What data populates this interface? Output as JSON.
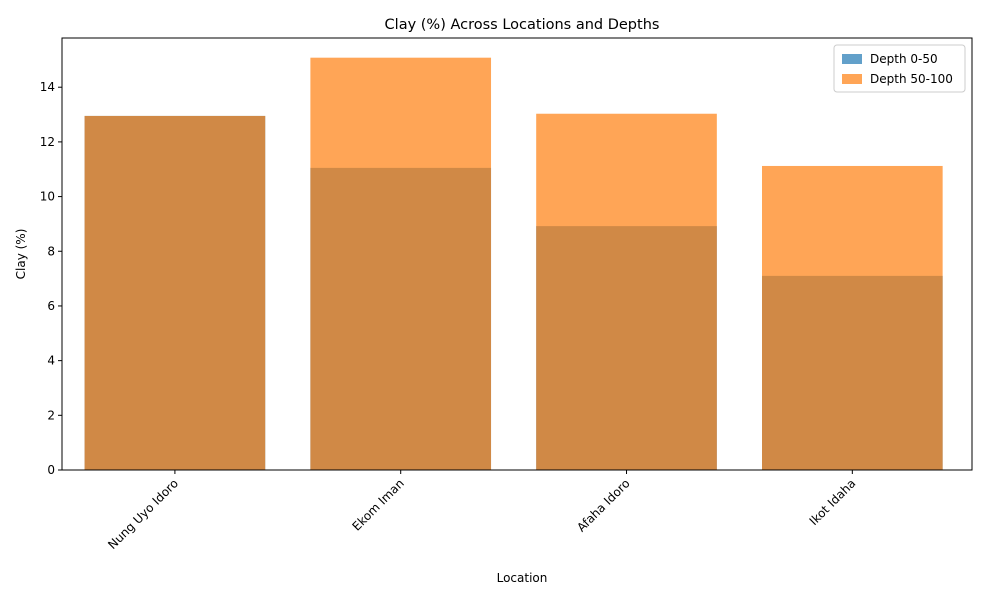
{
  "chart_data": {
    "type": "bar",
    "title": "Clay (%) Across Locations and Depths",
    "xlabel": "Location",
    "ylabel": "Clay (%)",
    "categories": [
      "Nung Uyo Idoro",
      "Ekom Iman",
      "Afaha Idoro",
      "Ikot Idaha"
    ],
    "ylim": [
      0,
      15.8
    ],
    "yticks": [
      0,
      2,
      4,
      6,
      8,
      10,
      12,
      14
    ],
    "series": [
      {
        "name": "Depth 0-50",
        "values": [
          12.95,
          11.05,
          8.92,
          7.1
        ],
        "color": "#1f77b4",
        "opacity": 0.7
      },
      {
        "name": "Depth 50-100",
        "values": [
          12.95,
          15.08,
          13.03,
          11.12
        ],
        "color": "#ff7f0e",
        "opacity": 0.7
      }
    ],
    "legend_position": "top-right",
    "grid": false,
    "overlay": true
  }
}
